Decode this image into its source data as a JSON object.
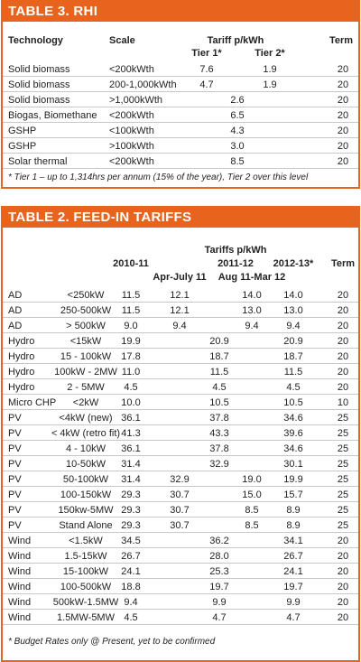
{
  "rhi": {
    "title": "TABLE 3. RHI",
    "headers": {
      "technology": "Technology",
      "scale": "Scale",
      "tariff": "Tariff p/kWh",
      "term": "Term",
      "tier1": "Tier 1*",
      "tier2": "Tier 2*"
    },
    "rows": [
      {
        "technology": "Solid biomass",
        "scale": "<200kWth",
        "tier1": "7.6",
        "tier2": "1.9",
        "term": "20"
      },
      {
        "technology": "Solid biomass",
        "scale": "200-1,000kWth",
        "tier1": "4.7",
        "tier2": "1.9",
        "term": "20"
      },
      {
        "technology": "Solid biomass",
        "scale": ">1,000kWth",
        "tariff": "2.6",
        "term": "20"
      },
      {
        "technology": "Biogas, Biomethane",
        "scale": "<200kWth",
        "tariff": "6.5",
        "term": "20"
      },
      {
        "technology": "GSHP",
        "scale": "<100kWth",
        "tariff": "4.3",
        "term": "20"
      },
      {
        "technology": "GSHP",
        "scale": ">100kWth",
        "tariff": "3.0",
        "term": "20"
      },
      {
        "technology": "Solar thermal",
        "scale": "<200kWth",
        "tariff": "8.5",
        "term": "20"
      }
    ],
    "footnote": "* Tier 1 – up to 1,314hrs per annum (15% of the year), Tier 2 over this level"
  },
  "fit": {
    "title": "TABLE 2. FEED-IN TARIFFS",
    "headers": {
      "tariffs": "Tariffs p/kWh",
      "y2010": "2010-11",
      "y2011": "2011-12",
      "y2012": "2012-13*",
      "term": "Term",
      "apr_jul": "Apr-July 11",
      "aug_mar": "Aug 11-Mar 12"
    },
    "rows": [
      {
        "technology": "AD",
        "scale": "<250kW",
        "y2010": "11.5",
        "apr_jul": "12.1",
        "aug_mar": "14.0",
        "y2012": "14.0",
        "term": "20"
      },
      {
        "technology": "AD",
        "scale": "250-500kW",
        "y2010": "11.5",
        "apr_jul": "12.1",
        "aug_mar": "13.0",
        "y2012": "13.0",
        "term": "20"
      },
      {
        "technology": "AD",
        "scale": "> 500kW",
        "y2010": "9.0",
        "apr_jul": "9.4",
        "aug_mar": "9.4",
        "y2012": "9.4",
        "term": "20"
      },
      {
        "technology": "Hydro",
        "scale": "<15kW",
        "y2010": "19.9",
        "y2011": "20.9",
        "y2012": "20.9",
        "term": "20"
      },
      {
        "technology": "Hydro",
        "scale": "15 - 100kW",
        "y2010": "17.8",
        "y2011": "18.7",
        "y2012": "18.7",
        "term": "20"
      },
      {
        "technology": "Hydro",
        "scale": "100kW - 2MW",
        "y2010": "11.0",
        "y2011": "11.5",
        "y2012": "11.5",
        "term": "20"
      },
      {
        "technology": "Hydro",
        "scale": "2 - 5MW",
        "y2010": "4.5",
        "y2011": "4.5",
        "y2012": "4.5",
        "term": "20"
      },
      {
        "technology": "Micro CHP",
        "scale": "<2kW",
        "y2010": "10.0",
        "y2011": "10.5",
        "y2012": "10.5",
        "term": "10"
      },
      {
        "technology": "PV",
        "scale": "<4kW (new)",
        "y2010": "36.1",
        "y2011": "37.8",
        "y2012": "34.6",
        "term": "25"
      },
      {
        "technology": "PV",
        "scale": "< 4kW (retro fit)",
        "y2010": "41.3",
        "y2011": "43.3",
        "y2012": "39.6",
        "term": "25"
      },
      {
        "technology": "PV",
        "scale": "4 - 10kW",
        "y2010": "36.1",
        "y2011": "37.8",
        "y2012": "34.6",
        "term": "25"
      },
      {
        "technology": "PV",
        "scale": "10-50kW",
        "y2010": "31.4",
        "y2011": "32.9",
        "y2012": "30.1",
        "term": "25"
      },
      {
        "technology": "PV",
        "scale": "50-100kW",
        "y2010": "31.4",
        "apr_jul": "32.9",
        "aug_mar": "19.0",
        "y2012": "19.9",
        "term": "25"
      },
      {
        "technology": "PV",
        "scale": "100-150kW",
        "y2010": "29.3",
        "apr_jul": "30.7",
        "aug_mar": "15.0",
        "y2012": "15.7",
        "term": "25"
      },
      {
        "technology": "PV",
        "scale": "150kw-5MW",
        "y2010": "29.3",
        "apr_jul": "30.7",
        "aug_mar": "8.5",
        "y2012": "8.9",
        "term": "25"
      },
      {
        "technology": "PV",
        "scale": "Stand Alone",
        "y2010": "29.3",
        "apr_jul": "30.7",
        "aug_mar": "8.5",
        "y2012": "8.9",
        "term": "25"
      },
      {
        "technology": "Wind",
        "scale": "<1.5kW",
        "y2010": "34.5",
        "y2011": "36.2",
        "y2012": "34.1",
        "term": "20"
      },
      {
        "technology": "Wind",
        "scale": "1.5-15kW",
        "y2010": "26.7",
        "y2011": "28.0",
        "y2012": "26.7",
        "term": "20"
      },
      {
        "technology": "Wind",
        "scale": "15-100kW",
        "y2010": "24.1",
        "y2011": "25.3",
        "y2012": "24.1",
        "term": "20"
      },
      {
        "technology": "Wind",
        "scale": "100-500kW",
        "y2010": "18.8",
        "y2011": "19.7",
        "y2012": "19.7",
        "term": "20"
      },
      {
        "technology": "Wind",
        "scale": "500kW-1.5MW",
        "y2010": "9.4",
        "y2011": "9.9",
        "y2012": "9.9",
        "term": "20"
      },
      {
        "technology": "Wind",
        "scale": "1.5MW-5MW",
        "y2010": "4.5",
        "y2011": "4.7",
        "y2012": "4.7",
        "term": "20"
      }
    ],
    "footnote": "* Budget Rates only @ Present, yet to be confirmed"
  }
}
